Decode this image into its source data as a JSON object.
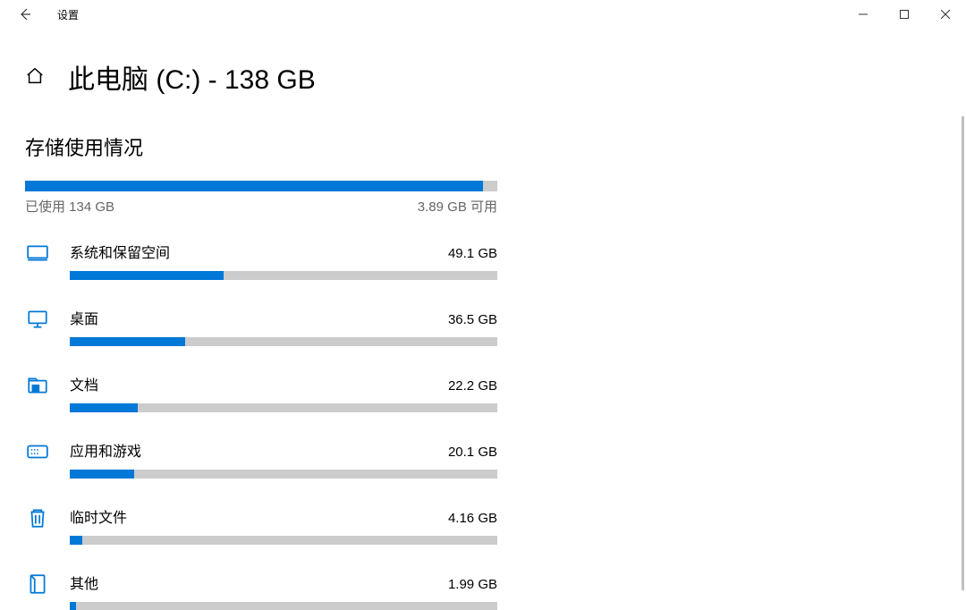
{
  "window": {
    "title": "设置"
  },
  "page": {
    "title": "此电脑 (C:) - 138 GB",
    "section_title": "存储使用情况"
  },
  "overall": {
    "used_label": "已使用 134 GB",
    "free_label": "3.89 GB 可用",
    "fill_percent": 97,
    "bar_color": "#0078d7",
    "track_color": "#cccccc"
  },
  "categories": [
    {
      "key": "system",
      "name": "系统和保留空间",
      "size": "49.1 GB",
      "fill_percent": 36
    },
    {
      "key": "desktop",
      "name": "桌面",
      "size": "36.5 GB",
      "fill_percent": 27
    },
    {
      "key": "documents",
      "name": "文档",
      "size": "22.2 GB",
      "fill_percent": 16
    },
    {
      "key": "apps",
      "name": "应用和游戏",
      "size": "20.1 GB",
      "fill_percent": 15
    },
    {
      "key": "temp",
      "name": "临时文件",
      "size": "4.16 GB",
      "fill_percent": 3
    },
    {
      "key": "other",
      "name": "其他",
      "size": "1.99 GB",
      "fill_percent": 1.5
    }
  ],
  "colors": {
    "accent": "#0078d7",
    "bar_track": "#cccccc",
    "text_muted": "#666666",
    "background": "#ffffff"
  }
}
